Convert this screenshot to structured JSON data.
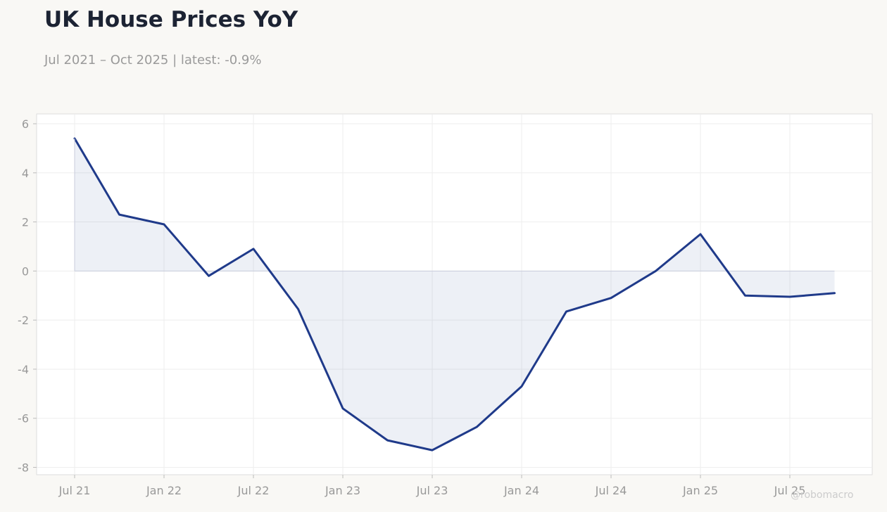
{
  "header": {
    "title": "UK House Prices YoY",
    "subtitle": "Jul 2021 – Oct 2025 | latest: -0.9%"
  },
  "watermark": "@robomacro",
  "colors": {
    "line": "#1f3a8a",
    "fill": "#1f3a8a",
    "background": "#f9f8f5",
    "plot_background": "#ffffff"
  },
  "chart_data": {
    "type": "area",
    "title": "UK House Prices YoY",
    "subtitle": "Jul 2021 – Oct 2025 | latest: -0.9%",
    "xlabel": "",
    "ylabel": "",
    "ylim": [
      -8.3,
      6.4
    ],
    "yticks": [
      6,
      4,
      2,
      0,
      -2,
      -4,
      -6,
      -8
    ],
    "xtick_labels": [
      "Jul 21",
      "Jan 22",
      "Jul 22",
      "Jan 23",
      "Jul 23",
      "Jan 24",
      "Jul 24",
      "Jan 25",
      "Jul 25"
    ],
    "grid": true,
    "x": [
      "Jul 2021",
      "Oct 2021",
      "Jan 2022",
      "Apr 2022",
      "Jul 2022",
      "Oct 2022",
      "Jan 2023",
      "Apr 2023",
      "Jul 2023",
      "Oct 2023",
      "Jan 2024",
      "Apr 2024",
      "Jul 2024",
      "Oct 2024",
      "Jan 2025",
      "Apr 2025",
      "Jul 2025",
      "Oct 2025"
    ],
    "values": [
      5.4,
      2.3,
      1.9,
      -0.2,
      0.9,
      -1.55,
      -5.6,
      -6.9,
      -7.3,
      -6.35,
      -4.7,
      -1.65,
      -1.1,
      0.0,
      1.5,
      -1.0,
      -1.05,
      -0.9
    ]
  }
}
